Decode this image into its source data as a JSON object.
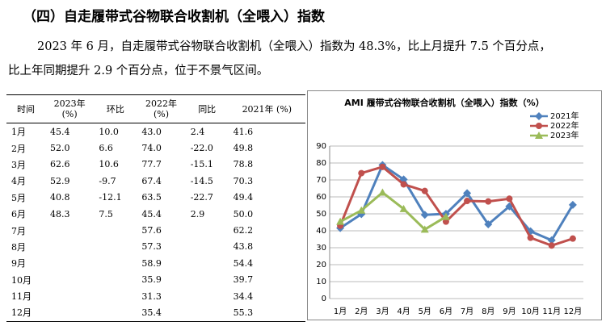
{
  "heading": "（四）自走履带式谷物联合收割机（全喂入）指数",
  "paragraph": {
    "lines": [
      "2023 年 6 月，自走履带式谷物联合收割机（全喂入）指数为 48.3%，比上月提升 7.5 个百分点，",
      "比上年同期提升 2.9 个百分点，位于不景气区间。"
    ]
  },
  "table": {
    "headers": [
      "时间",
      "2023年\n(%)",
      "环比",
      "2022年\n(%)",
      "同比",
      "2021年 (%)"
    ],
    "rows": [
      [
        "1月",
        "45.4",
        "10.0",
        "43.0",
        "2.4",
        "41.6"
      ],
      [
        "2月",
        "52.0",
        "6.6",
        "74.0",
        "-22.0",
        "49.8"
      ],
      [
        "3月",
        "62.6",
        "10.6",
        "77.7",
        "-15.1",
        "78.8"
      ],
      [
        "4月",
        "52.9",
        "-9.7",
        "67.4",
        "-14.5",
        "70.3"
      ],
      [
        "5月",
        "40.8",
        "-12.1",
        "63.5",
        "-22.7",
        "49.4"
      ],
      [
        "6月",
        "48.3",
        "7.5",
        "45.4",
        "2.9",
        "50.0"
      ],
      [
        "7月",
        null,
        null,
        "57.6",
        null,
        "62.2"
      ],
      [
        "8月",
        null,
        null,
        "57.3",
        null,
        "43.8"
      ],
      [
        "9月",
        null,
        null,
        "58.9",
        null,
        "54.4"
      ],
      [
        "10月",
        null,
        null,
        "35.9",
        null,
        "39.7"
      ],
      [
        "11月",
        null,
        null,
        "31.3",
        null,
        "34.4"
      ],
      [
        "12月",
        null,
        null,
        "35.4",
        null,
        "55.3"
      ]
    ]
  },
  "chart_data": {
    "type": "line",
    "title": "AMI 履带式谷物联合收割机（全喂入）指数（%）",
    "categories": [
      "1月",
      "2月",
      "3月",
      "4月",
      "5月",
      "6月",
      "7月",
      "8月",
      "9月",
      "10月",
      "11月",
      "12月"
    ],
    "series": [
      {
        "name": "2021年",
        "color": "#4f81bd",
        "marker": "diamond",
        "values": [
          41.6,
          49.8,
          78.8,
          70.3,
          49.4,
          50.0,
          62.2,
          43.8,
          54.4,
          39.7,
          34.4,
          55.3
        ]
      },
      {
        "name": "2022年",
        "color": "#c0504d",
        "marker": "circle",
        "values": [
          43.0,
          74.0,
          77.7,
          67.4,
          63.5,
          45.4,
          57.6,
          57.3,
          58.9,
          35.9,
          31.3,
          35.4
        ]
      },
      {
        "name": "2023年",
        "color": "#9bbb59",
        "marker": "triangle",
        "values": [
          45.4,
          52.0,
          62.6,
          52.9,
          40.8,
          48.3,
          null,
          null,
          null,
          null,
          null,
          null
        ]
      }
    ],
    "ylim": [
      0,
      90
    ],
    "yticks": [
      0,
      10,
      20,
      30,
      40,
      50,
      60,
      70,
      80,
      90
    ],
    "grid": true,
    "legend": "top-right"
  }
}
